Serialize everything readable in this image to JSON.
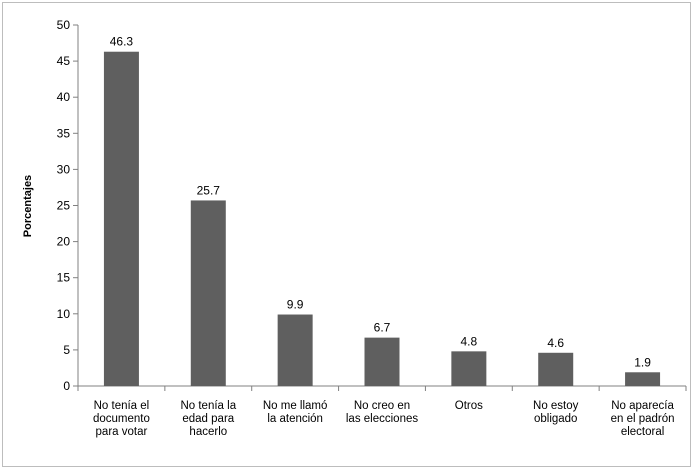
{
  "chart_data": {
    "type": "bar",
    "title": "",
    "xlabel": "",
    "ylabel": "Porcentajes",
    "ylim": [
      0,
      50
    ],
    "yticks": [
      0,
      5,
      10,
      15,
      20,
      25,
      30,
      35,
      40,
      45,
      50
    ],
    "grid": false,
    "legend": "none",
    "bar_color": "#5f5f5f",
    "categories": [
      [
        "No tenía el",
        "documento",
        "para votar"
      ],
      [
        "No tenía la",
        "edad para",
        "hacerlo"
      ],
      [
        "No me llamó",
        "la atención"
      ],
      [
        "No creo en",
        "las elecciones"
      ],
      [
        "Otros"
      ],
      [
        "No estoy",
        "obligado"
      ],
      [
        "No aparecía",
        "en el padrón",
        "electoral"
      ]
    ],
    "values": [
      46.3,
      25.7,
      9.9,
      6.7,
      4.8,
      4.6,
      1.9
    ],
    "data_labels": [
      "46.3",
      "25.7",
      "9.9",
      "6.7",
      "4.8",
      "4.6",
      "1.9"
    ]
  }
}
